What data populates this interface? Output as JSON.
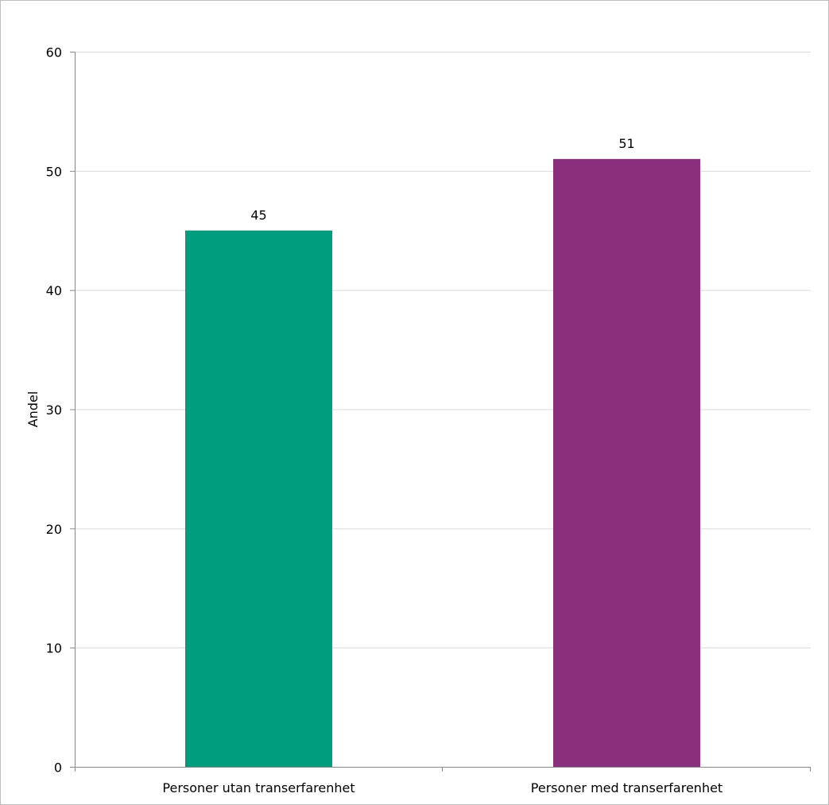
{
  "chart_data": {
    "type": "bar",
    "title": "",
    "xlabel": "",
    "ylabel": "Andel",
    "categories": [
      "Personer utan transerfarenhet",
      "Personer med transerfarenhet"
    ],
    "values": [
      45,
      51
    ],
    "data_labels": [
      "45",
      "51"
    ],
    "colors": [
      "#009e7e",
      "#8b2e7d"
    ],
    "ylim": [
      0,
      60
    ],
    "yticks": [
      0,
      10,
      20,
      30,
      40,
      50,
      60
    ],
    "ytick_labels": [
      "0",
      "10",
      "20",
      "30",
      "40",
      "50",
      "60"
    ],
    "grid": true,
    "legend": "none"
  }
}
